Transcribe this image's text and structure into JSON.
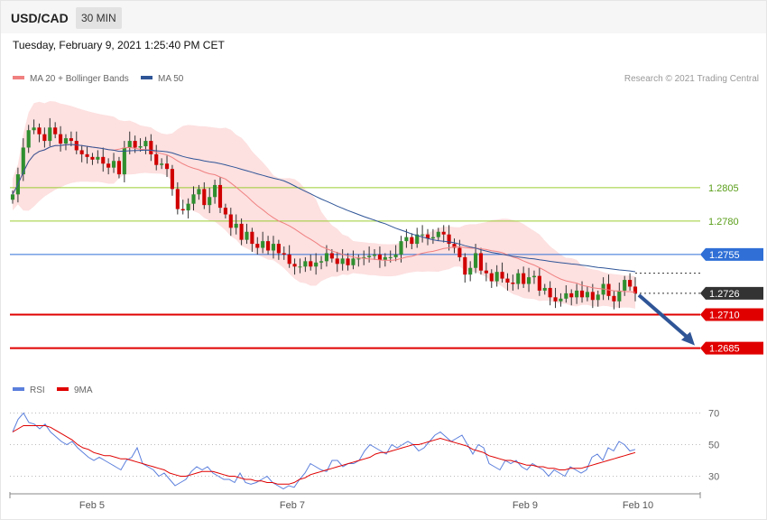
{
  "header": {
    "symbol": "USD/CAD",
    "timeframe": "30 MIN"
  },
  "timestamp": "Tuesday, February 9, 2021 1:25:40 PM CET",
  "legend_main": [
    {
      "label": "MA 20 + Bollinger Bands",
      "color": "#f08080"
    },
    {
      "label": "MA 50",
      "color": "#2f5597"
    }
  ],
  "legend_rsi": [
    {
      "label": "RSI",
      "color": "#5b7fdc"
    },
    {
      "label": "9MA",
      "color": "#e00000"
    }
  ],
  "credit": "Research © 2021 Trading Central",
  "colors": {
    "up": "#2f8f2f",
    "down": "#d00000",
    "band_fill": "#fde0e0",
    "ma20": "#f08080",
    "ma50": "#2f5597",
    "support": "#e00000",
    "resistance_green": "#9acd32",
    "pivot": "#2f6fd6",
    "arrow": "#2f5597"
  },
  "chart_data": [
    {
      "type": "candlestick",
      "title": "USD/CAD",
      "ylim": [
        1.2655,
        1.2888
      ],
      "x_ticks": [
        "Feb 5",
        "Feb 7",
        "Feb 9",
        "Feb 10"
      ],
      "levels": [
        {
          "value": 1.2805,
          "label": "1.2805",
          "style": "resistance-minor"
        },
        {
          "value": 1.278,
          "label": "1.2780",
          "style": "resistance-minor"
        },
        {
          "value": 1.2755,
          "label": "1.2755",
          "style": "pivot"
        },
        {
          "value": 1.2726,
          "label": "1.2726",
          "style": "last-price"
        },
        {
          "value": 1.271,
          "label": "1.2710",
          "style": "support"
        },
        {
          "value": 1.2685,
          "label": "1.2685",
          "style": "support"
        }
      ],
      "forecast_arrow": {
        "from": 1.2726,
        "to": 1.2685,
        "direction": "down"
      },
      "close_series": [
        1.28,
        1.2815,
        1.2835,
        1.2848,
        1.285,
        1.2845,
        1.284,
        1.285,
        1.2845,
        1.2838,
        1.2842,
        1.284,
        1.2833,
        1.283,
        1.2828,
        1.2826,
        1.2828,
        1.2823,
        1.282,
        1.2825,
        1.2815,
        1.2835,
        1.284,
        1.2835,
        1.2836,
        1.284,
        1.283,
        1.2822,
        1.2823,
        1.2819,
        1.2804,
        1.2789,
        1.2788,
        1.2793,
        1.28,
        1.2804,
        1.2792,
        1.2798,
        1.2807,
        1.279,
        1.2785,
        1.2775,
        1.2778,
        1.2766,
        1.2772,
        1.2763,
        1.276,
        1.2765,
        1.2758,
        1.2763,
        1.2756,
        1.2755,
        1.2748,
        1.2746,
        1.2746,
        1.275,
        1.2746,
        1.2749,
        1.275,
        1.2756,
        1.2752,
        1.2748,
        1.2752,
        1.2747,
        1.2752,
        1.2752,
        1.2753,
        1.2754,
        1.2755,
        1.2751,
        1.2753,
        1.2753,
        1.2755,
        1.2765,
        1.2768,
        1.2763,
        1.277,
        1.277,
        1.2767,
        1.2768,
        1.2772,
        1.277,
        1.2763,
        1.276,
        1.2753,
        1.274,
        1.2745,
        1.2756,
        1.2743,
        1.2741,
        1.2735,
        1.2742,
        1.2737,
        1.2734,
        1.2733,
        1.2741,
        1.2733,
        1.2738,
        1.2739,
        1.2728,
        1.273,
        1.2723,
        1.272,
        1.2722,
        1.2726,
        1.2723,
        1.2728,
        1.2723,
        1.2727,
        1.2721,
        1.2725,
        1.2733,
        1.2724,
        1.272,
        1.2728,
        1.2736,
        1.2731,
        1.2726
      ]
    },
    {
      "type": "line",
      "title": "RSI",
      "ylim": [
        20,
        80
      ],
      "y_ticks": [
        70,
        50,
        30
      ],
      "series": [
        {
          "name": "RSI",
          "color": "#5b7fdc",
          "values": [
            58,
            66,
            70,
            64,
            63,
            60,
            63,
            58,
            55,
            52,
            50,
            52,
            48,
            45,
            42,
            40,
            42,
            40,
            38,
            36,
            34,
            40,
            42,
            48,
            38,
            36,
            34,
            30,
            32,
            28,
            24,
            26,
            28,
            33,
            36,
            34,
            36,
            32,
            30,
            28,
            28,
            26,
            32,
            26,
            25,
            26,
            28,
            30,
            26,
            24,
            22,
            24,
            23,
            28,
            32,
            38,
            36,
            34,
            33,
            40,
            40,
            36,
            38,
            38,
            40,
            46,
            50,
            48,
            46,
            44,
            50,
            48,
            50,
            52,
            50,
            46,
            48,
            52,
            56,
            58,
            55,
            52,
            54,
            56,
            50,
            44,
            50,
            48,
            38,
            36,
            34,
            40,
            38,
            40,
            36,
            34,
            38,
            36,
            34,
            30,
            34,
            32,
            30,
            36,
            34,
            32,
            34,
            42,
            44,
            40,
            48,
            46,
            52,
            50,
            46,
            47
          ]
        },
        {
          "name": "9MA",
          "color": "#e00000",
          "values": [
            58,
            60,
            62,
            62,
            62,
            62,
            62,
            61,
            59,
            57,
            55,
            53,
            50,
            48,
            47,
            45,
            44,
            43,
            43,
            42,
            41,
            41,
            40,
            39,
            38,
            37,
            36,
            35,
            34,
            32,
            31,
            30,
            30,
            31,
            32,
            33,
            33,
            33,
            32,
            31,
            30,
            30,
            29,
            28,
            28,
            27,
            27,
            26,
            26,
            25,
            25,
            25,
            26,
            28,
            29,
            31,
            32,
            33,
            34,
            35,
            36,
            37,
            38,
            39,
            40,
            41,
            42,
            44,
            45,
            45,
            46,
            47,
            48,
            49,
            50,
            50,
            51,
            52,
            53,
            54,
            53,
            52,
            51,
            50,
            49,
            47,
            46,
            45,
            43,
            42,
            41,
            40,
            40,
            39,
            38,
            37,
            37,
            36,
            36,
            35,
            35,
            34,
            34,
            35,
            35,
            35,
            36,
            37,
            38,
            39,
            40,
            41,
            42,
            43,
            44,
            45
          ]
        }
      ]
    }
  ]
}
